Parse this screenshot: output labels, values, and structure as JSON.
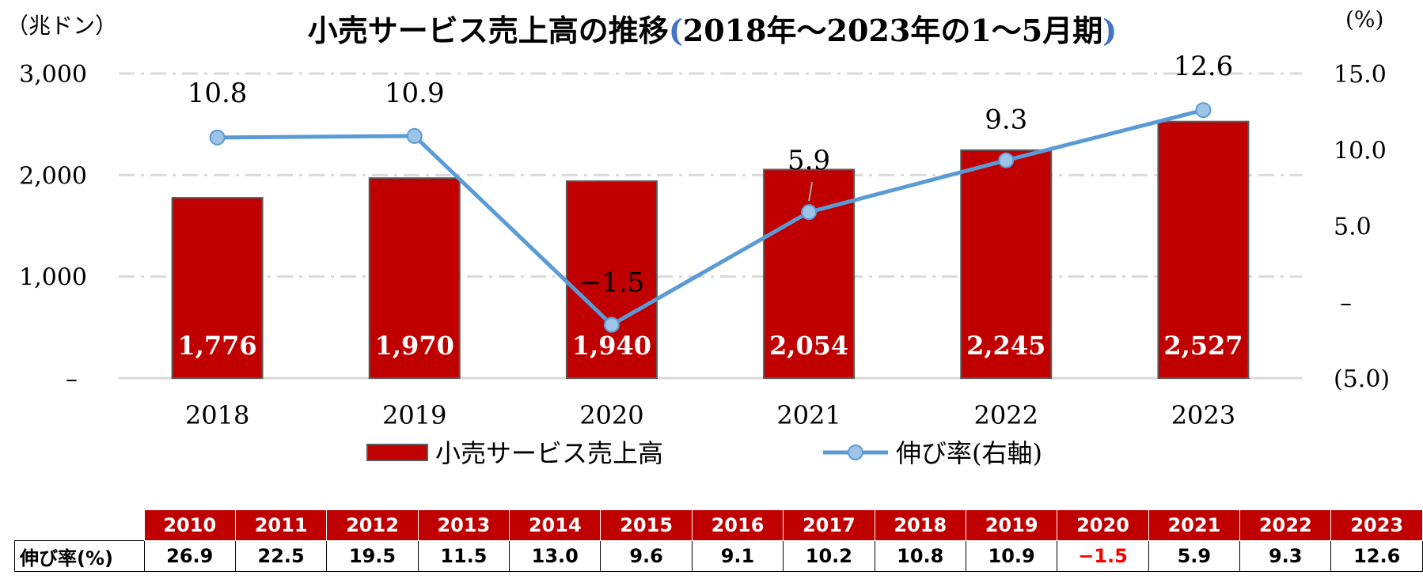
{
  "chart_data": {
    "type": "bar+line",
    "title": "小売サービス売上高の推移",
    "title_paren_open": "(",
    "title_paren_content": "2018年～2023年の1～5月期",
    "title_paren_close": ")",
    "left_axis_unit": "（兆ドン）",
    "right_axis_unit": "(%)",
    "categories": [
      "2018",
      "2019",
      "2020",
      "2021",
      "2022",
      "2023"
    ],
    "left_ylim": [
      0,
      3000
    ],
    "right_ylim": [
      -5,
      15
    ],
    "left_ticks": [
      {
        "value": 0,
        "label": "–"
      },
      {
        "value": 1000,
        "label": "1,000"
      },
      {
        "value": 2000,
        "label": "2,000"
      },
      {
        "value": 3000,
        "label": "3,000"
      }
    ],
    "right_ticks": [
      {
        "value": -5,
        "label": "(5.0)"
      },
      {
        "value": 0,
        "label": "–"
      },
      {
        "value": 5,
        "label": "5.0"
      },
      {
        "value": 10,
        "label": "10.0"
      },
      {
        "value": 15,
        "label": "15.0"
      }
    ],
    "series": [
      {
        "name": "小売サービス売上高",
        "kind": "bar",
        "axis": "left",
        "values": [
          1776,
          1970,
          1940,
          2054,
          2245,
          2527
        ],
        "labels": [
          "1,776",
          "1,970",
          "1,940",
          "2,054",
          "2,245",
          "2,527"
        ],
        "color": "#c00000"
      },
      {
        "name": "伸び率(右軸)",
        "kind": "line",
        "axis": "right",
        "values": [
          10.8,
          10.9,
          -1.5,
          5.9,
          9.3,
          12.6
        ],
        "labels": [
          "10.8",
          "10.9",
          "−1.5",
          "5.9",
          "9.3",
          "12.6"
        ],
        "color": "#5b9bd5"
      }
    ],
    "grid": true,
    "legend_position": "bottom"
  },
  "growth_table": {
    "row_header": "伸び率(%)",
    "years": [
      "2010",
      "2011",
      "2012",
      "2013",
      "2014",
      "2015",
      "2016",
      "2017",
      "2018",
      "2019",
      "2020",
      "2021",
      "2022",
      "2023"
    ],
    "values": [
      "26.9",
      "22.5",
      "19.5",
      "11.5",
      "13.0",
      "9.6",
      "9.1",
      "10.2",
      "10.8",
      "10.9",
      "−1.5",
      "5.9",
      "9.3",
      "12.6"
    ],
    "negative_color": "#ff0000",
    "header_color": "#c00000"
  }
}
